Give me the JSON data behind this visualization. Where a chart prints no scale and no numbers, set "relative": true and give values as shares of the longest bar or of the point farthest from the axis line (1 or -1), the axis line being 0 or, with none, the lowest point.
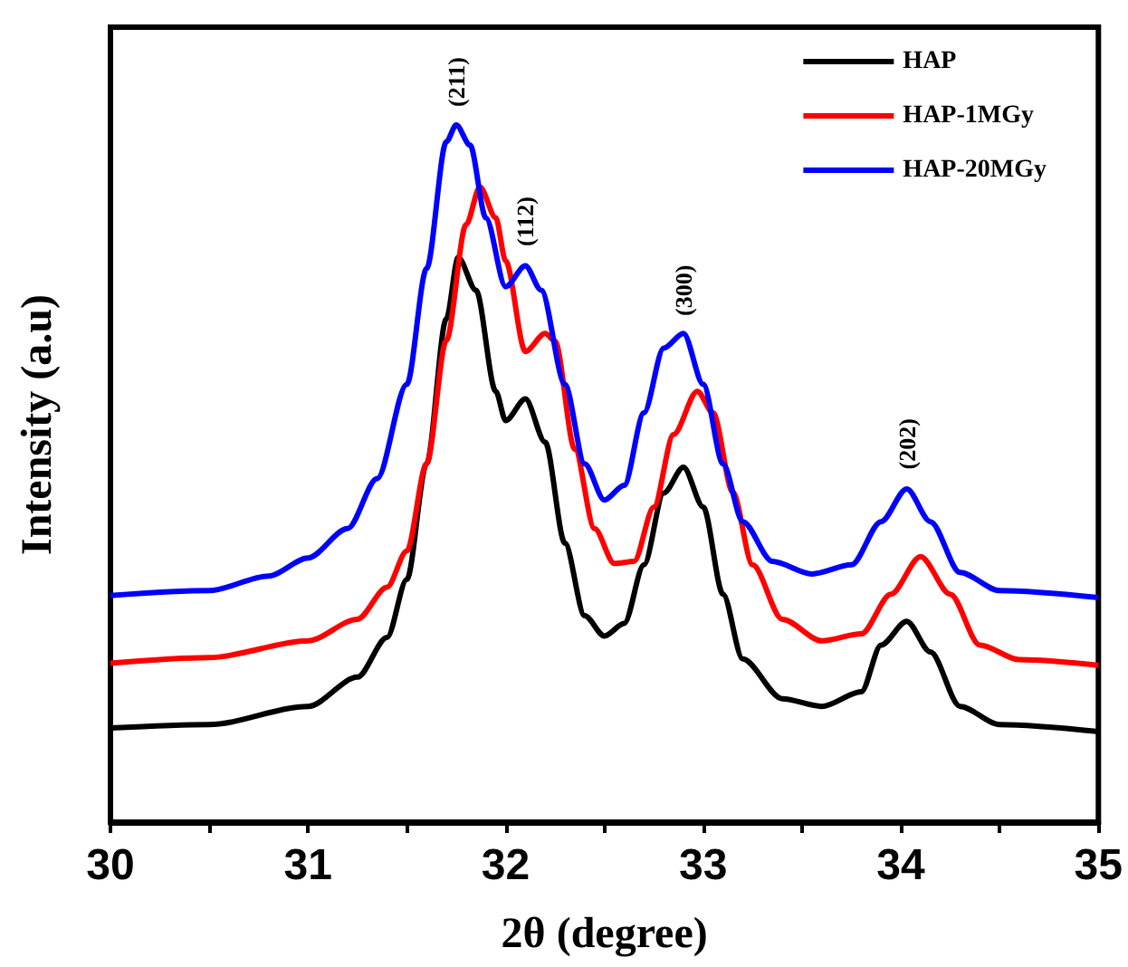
{
  "chart_data": {
    "type": "line",
    "relative": true,
    "xlabel": "2θ (degree)",
    "ylabel": "Intensity (a.u)",
    "xlim": [
      30,
      35
    ],
    "xticks": [
      30,
      {
        "value": 30.5,
        "label": null
      },
      31,
      {
        "value": 31.5,
        "label": null
      },
      32,
      {
        "value": 32.5,
        "label": null
      },
      33,
      {
        "value": 33.5,
        "label": null
      },
      34,
      {
        "value": 34.5,
        "label": null
      },
      35
    ],
    "grid": false,
    "legend": "top right",
    "marker": "none",
    "line_style": "solid",
    "annotations": [
      {
        "text": "(211)",
        "x": 31.75,
        "y": 1
      },
      {
        "text": "(112)",
        "x": 32.1,
        "y": 0.8
      },
      {
        "text": "(300)",
        "x": 32.9,
        "y": 0.7
      },
      {
        "text": "(202)",
        "x": 34.03,
        "y": 0.48
      }
    ],
    "series": [
      {
        "name": "HAP",
        "color": "#000000",
        "x": [
          30,
          30.5,
          31,
          31.25,
          31.4,
          31.5,
          31.6,
          31.7,
          31.76,
          31.85,
          31.95,
          32,
          32.1,
          32.2,
          32.3,
          32.4,
          32.5,
          32.6,
          32.7,
          32.8,
          32.9,
          33,
          33.1,
          33.2,
          33.4,
          33.6,
          33.8,
          33.9,
          34.03,
          34.15,
          34.3,
          34.5,
          35
        ],
        "values": [
          0.135,
          0.14,
          0.166,
          0.208,
          0.265,
          0.348,
          0.514,
          0.722,
          0.81,
          0.763,
          0.618,
          0.576,
          0.607,
          0.545,
          0.4,
          0.296,
          0.267,
          0.285,
          0.369,
          0.472,
          0.509,
          0.452,
          0.327,
          0.234,
          0.177,
          0.166,
          0.187,
          0.254,
          0.288,
          0.244,
          0.166,
          0.14,
          0.13
        ]
      },
      {
        "name": "HAP-1MGy",
        "color": "#ff0000",
        "x": [
          30,
          30.5,
          31,
          31.25,
          31.4,
          31.5,
          31.6,
          31.7,
          31.8,
          31.87,
          31.95,
          32,
          32.1,
          32.2,
          32.25,
          32.35,
          32.45,
          32.55,
          32.65,
          32.75,
          32.85,
          32.97,
          33.05,
          33.15,
          33.25,
          33.4,
          33.6,
          33.8,
          33.95,
          34.1,
          34.25,
          34.4,
          34.6,
          35
        ],
        "values": [
          0.228,
          0.236,
          0.26,
          0.291,
          0.337,
          0.389,
          0.514,
          0.691,
          0.857,
          0.911,
          0.867,
          0.805,
          0.675,
          0.701,
          0.69,
          0.535,
          0.421,
          0.371,
          0.374,
          0.452,
          0.556,
          0.618,
          0.587,
          0.473,
          0.369,
          0.291,
          0.26,
          0.27,
          0.327,
          0.381,
          0.327,
          0.254,
          0.233,
          0.225
        ]
      },
      {
        "name": "HAP-20MGy",
        "color": "#0000ff",
        "x": [
          30,
          30.5,
          30.8,
          31,
          31.2,
          31.35,
          31.5,
          31.6,
          31.7,
          31.75,
          31.82,
          31.9,
          32,
          32.1,
          32.18,
          32.3,
          32.4,
          32.5,
          32.6,
          32.7,
          32.8,
          32.9,
          33,
          33.1,
          33.2,
          33.35,
          33.55,
          33.75,
          33.9,
          34.03,
          34.15,
          34.3,
          34.5,
          35
        ],
        "values": [
          0.325,
          0.332,
          0.353,
          0.379,
          0.421,
          0.493,
          0.628,
          0.794,
          0.976,
          1,
          0.971,
          0.867,
          0.768,
          0.798,
          0.763,
          0.628,
          0.514,
          0.462,
          0.483,
          0.587,
          0.68,
          0.701,
          0.628,
          0.514,
          0.431,
          0.374,
          0.356,
          0.369,
          0.431,
          0.478,
          0.431,
          0.358,
          0.332,
          0.322
        ]
      }
    ]
  }
}
